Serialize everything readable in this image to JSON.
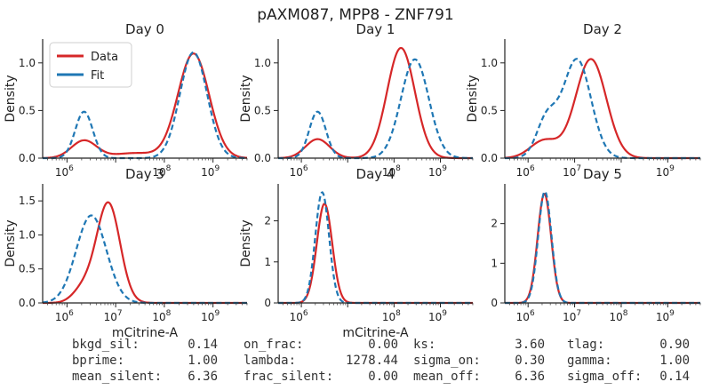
{
  "figure": {
    "title": "pAXM087, MPP8 - ZNF791",
    "legend": [
      {
        "label": "Data",
        "color": "#d62728",
        "style": "solid"
      },
      {
        "label": "Fit",
        "color": "#1f77b4",
        "style": "dashed"
      }
    ],
    "legend_placement": "top-left of first panel"
  },
  "chart_data": [
    {
      "type": "line",
      "title": "Day 0",
      "xlabel": "",
      "ylabel": "Density",
      "xscale": "log",
      "xlim_log10": [
        5.5,
        9.7
      ],
      "ylim": [
        0,
        1.25
      ],
      "xticks": [
        {
          "label": "10",
          "exp": "6"
        },
        {
          "label": "10",
          "exp": "8"
        },
        {
          "label": "10",
          "exp": "9"
        }
      ],
      "yticks": [
        "0.0",
        "0.5",
        "1.0"
      ],
      "ytick_values": [
        0,
        0.5,
        1.0
      ],
      "series": [
        {
          "name": "Data",
          "components": [
            {
              "w": 0.12,
              "mu": 6.35,
              "sd": 0.26
            },
            {
              "w": 0.88,
              "mu": 8.6,
              "sd": 0.32
            }
          ],
          "extra": [
            {
              "w": 0.06,
              "mu": 7.4,
              "sd": 0.45
            }
          ]
        },
        {
          "name": "Fit",
          "components": [
            {
              "w": 0.22,
              "mu": 6.35,
              "sd": 0.18
            },
            {
              "w": 0.78,
              "mu": 8.6,
              "sd": 0.28
            }
          ]
        }
      ]
    },
    {
      "type": "line",
      "title": "Day 1",
      "xlabel": "",
      "ylabel": "Density",
      "xscale": "log",
      "xlim_log10": [
        5.5,
        9.7
      ],
      "ylim": [
        0,
        1.25
      ],
      "xticks": [
        {
          "label": "10",
          "exp": "6"
        },
        {
          "label": "10",
          "exp": "8"
        },
        {
          "label": "10",
          "exp": "9"
        }
      ],
      "yticks": [
        "0.0",
        "0.5",
        "1.0"
      ],
      "ytick_values": [
        0,
        0.5,
        1.0
      ],
      "series": [
        {
          "name": "Data",
          "components": [
            {
              "w": 0.13,
              "mu": 6.35,
              "sd": 0.26
            },
            {
              "w": 0.87,
              "mu": 8.15,
              "sd": 0.3
            }
          ],
          "extra": []
        },
        {
          "name": "Fit",
          "components": [
            {
              "w": 0.22,
              "mu": 6.35,
              "sd": 0.18
            },
            {
              "w": 0.78,
              "mu": 8.45,
              "sd": 0.3
            }
          ]
        }
      ]
    },
    {
      "type": "line",
      "title": "Day 2",
      "xlabel": "",
      "ylabel": "Density",
      "xscale": "log",
      "xlim_log10": [
        5.5,
        9.7
      ],
      "ylim": [
        0,
        1.25
      ],
      "xticks": [
        {
          "label": "10",
          "exp": "6"
        },
        {
          "label": "10",
          "exp": "7"
        },
        {
          "label": "10",
          "exp": "9"
        }
      ],
      "yticks": [
        "0.0",
        "0.5",
        "1.0"
      ],
      "ytick_values": [
        0,
        0.5,
        1.0
      ],
      "series": [
        {
          "name": "Data",
          "components": [
            {
              "w": 0.14,
              "mu": 6.35,
              "sd": 0.3
            },
            {
              "w": 0.86,
              "mu": 7.35,
              "sd": 0.33
            }
          ],
          "extra": []
        },
        {
          "name": "Fit",
          "components": [
            {
              "w": 0.22,
              "mu": 6.4,
              "sd": 0.22
            },
            {
              "w": 0.78,
              "mu": 7.05,
              "sd": 0.3
            }
          ]
        }
      ]
    },
    {
      "type": "line",
      "title": "Day 3",
      "xlabel": "mCitrine-A",
      "ylabel": "Density",
      "xscale": "log",
      "xlim_log10": [
        5.5,
        9.7
      ],
      "ylim": [
        0,
        1.75
      ],
      "xticks": [
        {
          "label": "10",
          "exp": "6"
        },
        {
          "label": "10",
          "exp": "7"
        },
        {
          "label": "10",
          "exp": "8"
        },
        {
          "label": "10",
          "exp": "9"
        }
      ],
      "yticks": [
        "0.0",
        "0.5",
        "1.0",
        "1.5"
      ],
      "ytick_values": [
        0,
        0.5,
        1.0,
        1.5
      ],
      "series": [
        {
          "name": "Data",
          "components": [
            {
              "w": 0.12,
              "mu": 6.35,
              "sd": 0.22
            },
            {
              "w": 0.88,
              "mu": 6.85,
              "sd": 0.24
            }
          ],
          "extra": []
        },
        {
          "name": "Fit",
          "components": [
            {
              "w": 1.0,
              "mu": 6.5,
              "sd": 0.31
            }
          ]
        }
      ]
    },
    {
      "type": "line",
      "title": "Day 4",
      "xlabel": "mCitrine-A",
      "ylabel": "Density",
      "xscale": "log",
      "xlim_log10": [
        5.5,
        9.7
      ],
      "ylim": [
        0,
        2.9
      ],
      "xticks": [
        {
          "label": "10",
          "exp": "6"
        },
        {
          "label": "10",
          "exp": "8"
        },
        {
          "label": "10",
          "exp": "9"
        }
      ],
      "yticks": [
        "0",
        "1",
        "2"
      ],
      "ytick_values": [
        0,
        1,
        2
      ],
      "series": [
        {
          "name": "Data",
          "components": [
            {
              "w": 1.0,
              "mu": 6.5,
              "sd": 0.165
            }
          ],
          "extra": []
        },
        {
          "name": "Fit",
          "components": [
            {
              "w": 1.0,
              "mu": 6.45,
              "sd": 0.148
            }
          ]
        }
      ]
    },
    {
      "type": "line",
      "title": "Day 5",
      "xlabel": "",
      "ylabel": "",
      "xscale": "log",
      "xlim_log10": [
        5.5,
        9.7
      ],
      "ylim": [
        0,
        3.0
      ],
      "xticks": [
        {
          "label": "10",
          "exp": "6"
        },
        {
          "label": "10",
          "exp": "7"
        },
        {
          "label": "10",
          "exp": "8"
        },
        {
          "label": "10",
          "exp": "9"
        }
      ],
      "yticks": [
        "0",
        "1",
        "2"
      ],
      "ytick_values": [
        0,
        1,
        2
      ],
      "series": [
        {
          "name": "Data",
          "components": [
            {
              "w": 1.0,
              "mu": 6.35,
              "sd": 0.145
            }
          ],
          "extra": []
        },
        {
          "name": "Fit",
          "components": [
            {
              "w": 1.0,
              "mu": 6.36,
              "sd": 0.142
            }
          ]
        }
      ]
    }
  ],
  "stats": [
    [
      {
        "label": "bkgd_sil:",
        "value": "0.14"
      },
      {
        "label": "on_frac:",
        "value": "0.00"
      },
      {
        "label": "ks:",
        "value": "3.60"
      },
      {
        "label": "tlag:",
        "value": "0.90"
      }
    ],
    [
      {
        "label": "bprime:",
        "value": "1.00"
      },
      {
        "label": "lambda:",
        "value": "1278.44"
      },
      {
        "label": "sigma_on:",
        "value": "0.30"
      },
      {
        "label": "gamma:",
        "value": "1.00"
      }
    ],
    [
      {
        "label": "mean_silent:",
        "value": "6.36"
      },
      {
        "label": "frac_silent:",
        "value": "0.00"
      },
      {
        "label": "mean_off:",
        "value": "6.36"
      },
      {
        "label": "sigma_off:",
        "value": "0.14"
      }
    ]
  ]
}
